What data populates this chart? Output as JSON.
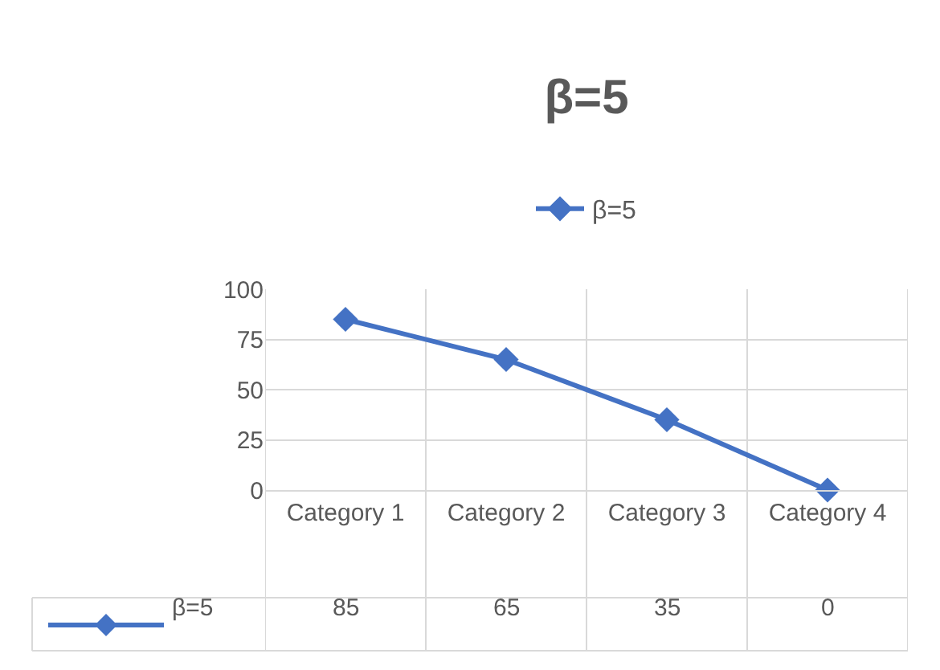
{
  "chart_data": {
    "type": "line",
    "title": "β=5",
    "categories": [
      "Category 1",
      "Category 2",
      "Category 3",
      "Category 4"
    ],
    "series": [
      {
        "name": "β=5",
        "color": "#4472c4",
        "values": [
          85,
          65,
          35,
          0
        ]
      }
    ],
    "ylim": [
      0,
      100
    ],
    "yticks": [
      0,
      25,
      50,
      75,
      100
    ],
    "grid": true,
    "legend": "top",
    "marker": "diamond",
    "line_style": "solid",
    "data_labels": true
  }
}
